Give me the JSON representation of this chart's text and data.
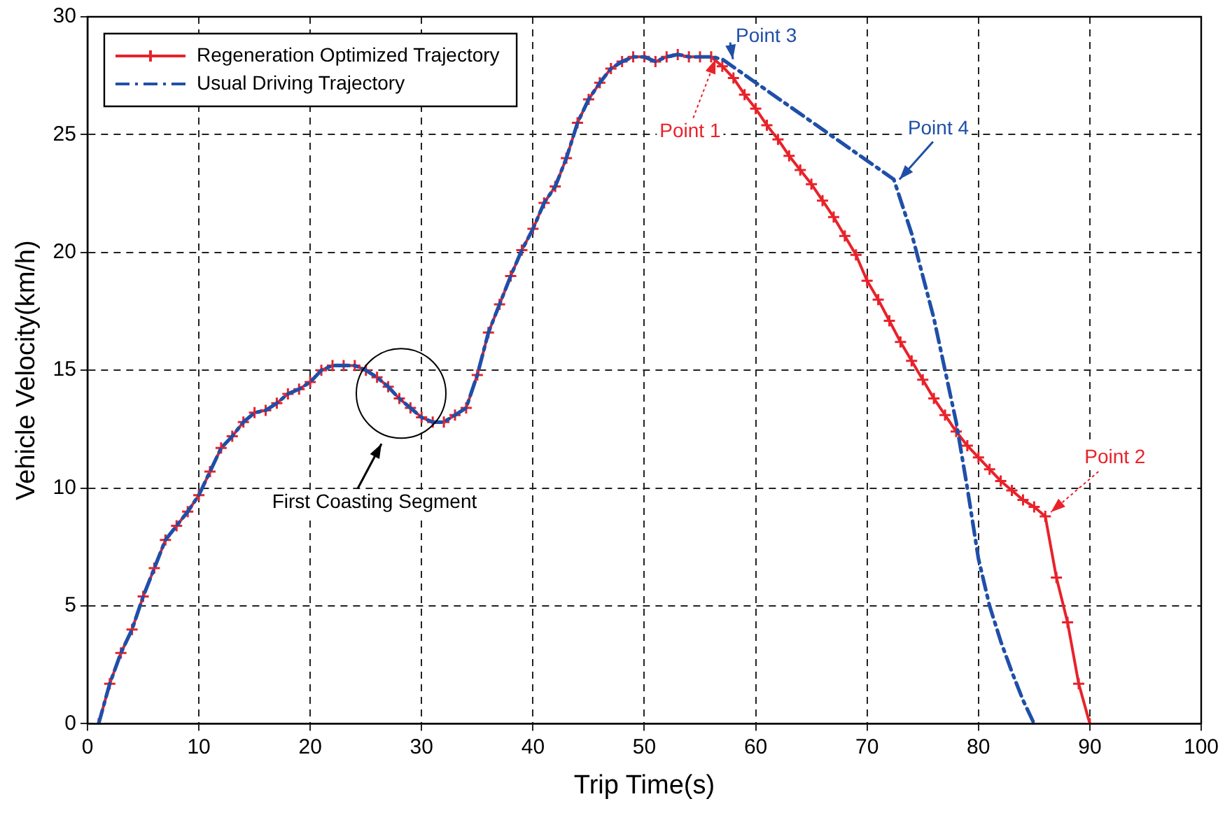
{
  "chart_data": {
    "type": "line",
    "xlabel": "Trip Time(s)",
    "ylabel": "Vehicle Velocity(km/h)",
    "xlim": [
      0,
      100
    ],
    "xticks": [
      0,
      10,
      20,
      30,
      40,
      50,
      60,
      70,
      80,
      90,
      100
    ],
    "ylim": [
      0,
      30
    ],
    "yticks": [
      0,
      5,
      10,
      15,
      20,
      25,
      30
    ],
    "grid": true,
    "legend": "top left",
    "series": [
      {
        "name": "Regeneration Optimized Trajectory",
        "color": "#e8222a",
        "marker": "cross",
        "line_style": "solid",
        "x": [
          1,
          2,
          3,
          4,
          5,
          6,
          7,
          8,
          9,
          10,
          11,
          12,
          13,
          14,
          15,
          16,
          17,
          18,
          19,
          20,
          21,
          22,
          23,
          24,
          25,
          26,
          27,
          28,
          29,
          30,
          31,
          32,
          33,
          34,
          35,
          36,
          37,
          38,
          39,
          40,
          41,
          42,
          43,
          44,
          45,
          46,
          47,
          48,
          49,
          50,
          51,
          52,
          53,
          54,
          55,
          56,
          57,
          58,
          59,
          60,
          61,
          62,
          63,
          64,
          65,
          66,
          67,
          68,
          69,
          70,
          71,
          72,
          73,
          74,
          75,
          76,
          77,
          78,
          79,
          80,
          81,
          82,
          83,
          84,
          85,
          86,
          87,
          88,
          89,
          90
        ],
        "values": [
          0,
          1.7,
          3,
          4,
          5.4,
          6.6,
          7.8,
          8.4,
          9,
          9.7,
          10.7,
          11.7,
          12.2,
          12.8,
          13.2,
          13.3,
          13.6,
          14,
          14.2,
          14.5,
          15,
          15.2,
          15.2,
          15.2,
          15,
          14.7,
          14.3,
          13.8,
          13.4,
          13,
          12.8,
          12.8,
          13.1,
          13.4,
          14.8,
          16.6,
          17.8,
          19,
          20.1,
          21,
          22.1,
          22.8,
          24,
          25.5,
          26.5,
          27.2,
          27.8,
          28.1,
          28.3,
          28.3,
          28.1,
          28.3,
          28.4,
          28.3,
          28.3,
          28.3,
          27.9,
          27.4,
          26.7,
          26.1,
          25.4,
          24.8,
          24.1,
          23.5,
          22.9,
          22.2,
          21.5,
          20.7,
          19.9,
          18.8,
          18,
          17.1,
          16.2,
          15.4,
          14.6,
          13.8,
          13.1,
          12.4,
          11.8,
          11.3,
          10.8,
          10.3,
          9.9,
          9.5,
          9.2,
          8.8,
          6.2,
          4.3,
          1.7,
          0
        ]
      },
      {
        "name": "Usual Driving Trajectory",
        "color": "#1f4fa8",
        "marker": "none",
        "line_style": "dashdot",
        "x": [
          1,
          2,
          3,
          4,
          5,
          6,
          7,
          8,
          9,
          10,
          11,
          12,
          13,
          14,
          15,
          16,
          17,
          18,
          19,
          20,
          21,
          22,
          23,
          24,
          25,
          26,
          27,
          28,
          29,
          30,
          31,
          32,
          33,
          34,
          35,
          36,
          37,
          38,
          39,
          40,
          41,
          42,
          43,
          44,
          45,
          46,
          47,
          48,
          49,
          50,
          51,
          52,
          53,
          54,
          55,
          56,
          57,
          72.4,
          74,
          76,
          78,
          79,
          80,
          81,
          82,
          83,
          84,
          85
        ],
        "values": [
          0,
          1.7,
          3,
          4,
          5.4,
          6.6,
          7.8,
          8.4,
          9,
          9.7,
          10.7,
          11.7,
          12.2,
          12.8,
          13.2,
          13.3,
          13.6,
          14,
          14.2,
          14.5,
          15,
          15.2,
          15.2,
          15.2,
          15,
          14.7,
          14.3,
          13.8,
          13.4,
          13,
          12.8,
          12.8,
          13.1,
          13.4,
          14.8,
          16.6,
          17.8,
          19,
          20.1,
          21,
          22.1,
          22.8,
          24,
          25.5,
          26.5,
          27.2,
          27.8,
          28.1,
          28.3,
          28.3,
          28.1,
          28.3,
          28.4,
          28.3,
          28.3,
          28.3,
          28.2,
          23.1,
          20.8,
          17.2,
          12.8,
          10,
          7,
          5,
          3.5,
          2.2,
          1,
          0
        ]
      }
    ],
    "annotations": [
      {
        "text": "Point 1",
        "x": 56.4,
        "y": 28.2
      },
      {
        "text": "Point 3",
        "x": 57.2,
        "y": 28.2
      },
      {
        "text": "Point 4",
        "x": 72.4,
        "y": 23.1
      },
      {
        "text": "Point 2",
        "x": 86,
        "y": 8.8
      },
      "First Coasting Segment"
    ]
  }
}
